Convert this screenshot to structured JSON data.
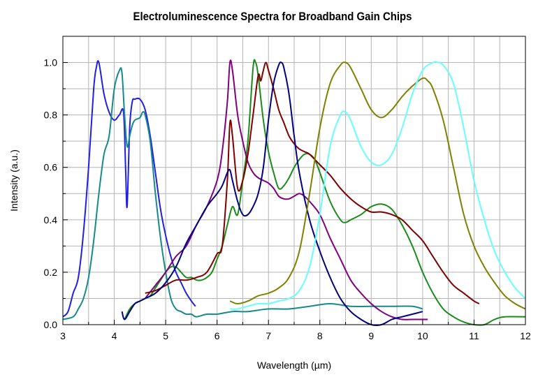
{
  "chart_data": {
    "type": "line",
    "title": "Electroluminescence Spectra for Broadband Gain Chips",
    "xlabel": "Wavelength (µm)",
    "ylabel": "Intensity (a.u.)",
    "xlim": [
      3,
      12
    ],
    "ylim": [
      0,
      1.1
    ],
    "x_ticks": [
      "3",
      "4",
      "5",
      "6",
      "7",
      "8",
      "9",
      "10",
      "11",
      "12"
    ],
    "y_ticks": [
      "0.0",
      "0.2",
      "0.4",
      "0.6",
      "0.8",
      "1.0"
    ],
    "x_tick_values": [
      3,
      4,
      5,
      6,
      7,
      8,
      9,
      10,
      11,
      12
    ],
    "y_tick_values": [
      0,
      0.2,
      0.4,
      0.6,
      0.8,
      1.0
    ],
    "grid": true,
    "series": [
      {
        "color": "#1f1fe6",
        "x": [
          3.0,
          3.1,
          3.2,
          3.3,
          3.4,
          3.5,
          3.6,
          3.65,
          3.7,
          3.8,
          3.9,
          4.0,
          4.1,
          4.18,
          4.22,
          4.25,
          4.3,
          4.35,
          4.4,
          4.5,
          4.6,
          4.7,
          4.8,
          4.9,
          5.0,
          5.1,
          5.2,
          5.3,
          5.4,
          5.5,
          5.58
        ],
        "y": [
          0.03,
          0.05,
          0.12,
          0.18,
          0.35,
          0.6,
          0.9,
          0.98,
          1.0,
          0.88,
          0.81,
          0.78,
          0.8,
          0.81,
          0.6,
          0.45,
          0.75,
          0.85,
          0.86,
          0.86,
          0.82,
          0.72,
          0.58,
          0.44,
          0.34,
          0.26,
          0.2,
          0.16,
          0.12,
          0.09,
          0.07
        ]
      },
      {
        "color": "#148a8a",
        "x": [
          3.0,
          3.2,
          3.3,
          3.4,
          3.5,
          3.6,
          3.7,
          3.8,
          3.9,
          4.0,
          4.1,
          4.15,
          4.2,
          4.25,
          4.3,
          4.35,
          4.4,
          4.5,
          4.55,
          4.6,
          4.7,
          4.8,
          4.9,
          5.0,
          5.1,
          5.2,
          5.3,
          5.4,
          5.5,
          5.6,
          5.8,
          6.0,
          6.3,
          6.6,
          7.0,
          7.4,
          7.8,
          8.2,
          8.6,
          9.0,
          9.4,
          9.8,
          10.0
        ],
        "y": [
          0.02,
          0.03,
          0.06,
          0.1,
          0.18,
          0.32,
          0.5,
          0.65,
          0.72,
          0.9,
          0.97,
          0.96,
          0.8,
          0.68,
          0.72,
          0.76,
          0.78,
          0.79,
          0.81,
          0.8,
          0.7,
          0.5,
          0.33,
          0.2,
          0.1,
          0.06,
          0.05,
          0.04,
          0.04,
          0.03,
          0.04,
          0.04,
          0.05,
          0.05,
          0.06,
          0.06,
          0.07,
          0.08,
          0.07,
          0.07,
          0.07,
          0.07,
          0.06
        ]
      },
      {
        "color": "#1a8c1a",
        "x": [
          4.2,
          4.3,
          4.4,
          4.5,
          4.6,
          4.7,
          4.8,
          4.9,
          5.0,
          5.1,
          5.2,
          5.3,
          5.4,
          5.5,
          5.6,
          5.7,
          5.8,
          5.9,
          6.0,
          6.1,
          6.2,
          6.3,
          6.4,
          6.5,
          6.6,
          6.7,
          6.75,
          6.8,
          6.9,
          7.0,
          7.1,
          7.2,
          7.3,
          7.4,
          7.5,
          7.6,
          7.7,
          7.8,
          7.9,
          8.0,
          8.2,
          8.4,
          8.5,
          8.6,
          8.8,
          9.0,
          9.2,
          9.4,
          9.6,
          9.8,
          10.0,
          10.2,
          10.4,
          10.6,
          10.8,
          11.0,
          11.2,
          11.4,
          11.6,
          12.0
        ],
        "y": [
          0.02,
          0.06,
          0.08,
          0.09,
          0.1,
          0.11,
          0.14,
          0.17,
          0.2,
          0.22,
          0.22,
          0.2,
          0.18,
          0.18,
          0.17,
          0.17,
          0.18,
          0.2,
          0.25,
          0.3,
          0.38,
          0.45,
          0.42,
          0.55,
          0.7,
          0.98,
          1.0,
          0.95,
          0.78,
          0.66,
          0.58,
          0.52,
          0.53,
          0.56,
          0.6,
          0.63,
          0.65,
          0.65,
          0.63,
          0.58,
          0.47,
          0.4,
          0.39,
          0.4,
          0.42,
          0.45,
          0.46,
          0.44,
          0.38,
          0.3,
          0.2,
          0.12,
          0.06,
          0.03,
          0.01,
          0.0,
          0.0,
          0.02,
          0.03,
          0.03
        ]
      },
      {
        "color": "#800080",
        "x": [
          4.6,
          4.8,
          5.0,
          5.2,
          5.4,
          5.6,
          5.8,
          6.0,
          6.1,
          6.2,
          6.25,
          6.3,
          6.4,
          6.5,
          6.6,
          6.7,
          6.8,
          6.9,
          7.0,
          7.1,
          7.2,
          7.3,
          7.4,
          7.5,
          7.6,
          7.7,
          7.8,
          8.0,
          8.2,
          8.4,
          8.6,
          8.8,
          9.0,
          9.2,
          9.4,
          9.6,
          9.8,
          10.0,
          10.1
        ],
        "y": [
          0.1,
          0.15,
          0.2,
          0.26,
          0.3,
          0.38,
          0.45,
          0.55,
          0.66,
          0.85,
          1.0,
          0.97,
          0.8,
          0.7,
          0.62,
          0.58,
          0.56,
          0.55,
          0.54,
          0.52,
          0.49,
          0.48,
          0.48,
          0.49,
          0.5,
          0.49,
          0.47,
          0.42,
          0.33,
          0.25,
          0.17,
          0.12,
          0.08,
          0.05,
          0.03,
          0.02,
          0.02,
          0.02,
          0.02
        ]
      },
      {
        "color": "#800000",
        "x": [
          4.6,
          4.8,
          5.0,
          5.2,
          5.4,
          5.6,
          5.8,
          6.0,
          6.1,
          6.2,
          6.25,
          6.3,
          6.4,
          6.5,
          6.6,
          6.7,
          6.8,
          6.85,
          6.9,
          6.95,
          7.0,
          7.1,
          7.2,
          7.3,
          7.4,
          7.5,
          7.6,
          7.7,
          7.8,
          8.0,
          8.2,
          8.4,
          8.6,
          8.8,
          9.0,
          9.2,
          9.4,
          9.6,
          9.8,
          10.0,
          10.2,
          10.4,
          10.6,
          10.8,
          11.0,
          11.1
        ],
        "y": [
          0.12,
          0.13,
          0.15,
          0.17,
          0.17,
          0.18,
          0.2,
          0.27,
          0.3,
          0.55,
          0.77,
          0.72,
          0.52,
          0.55,
          0.65,
          0.8,
          0.95,
          0.93,
          0.97,
          1.0,
          0.97,
          0.9,
          0.82,
          0.77,
          0.72,
          0.69,
          0.67,
          0.66,
          0.65,
          0.61,
          0.57,
          0.52,
          0.48,
          0.45,
          0.43,
          0.43,
          0.42,
          0.4,
          0.36,
          0.32,
          0.26,
          0.2,
          0.15,
          0.12,
          0.09,
          0.08
        ]
      },
      {
        "color": "#000080",
        "x": [
          4.15,
          4.2,
          4.3,
          4.4,
          4.5,
          4.6,
          4.8,
          5.0,
          5.2,
          5.4,
          5.6,
          5.8,
          6.0,
          6.1,
          6.2,
          6.25,
          6.3,
          6.4,
          6.5,
          6.6,
          6.7,
          6.8,
          6.9,
          7.0,
          7.1,
          7.2,
          7.25,
          7.3,
          7.4,
          7.5,
          7.6,
          7.8,
          8.0,
          8.2,
          8.4,
          8.6,
          8.8,
          9.0,
          9.2,
          9.4,
          9.6,
          9.8,
          10.0
        ],
        "y": [
          0.05,
          0.02,
          0.05,
          0.08,
          0.09,
          0.1,
          0.12,
          0.16,
          0.22,
          0.31,
          0.38,
          0.45,
          0.5,
          0.53,
          0.58,
          0.59,
          0.55,
          0.47,
          0.42,
          0.42,
          0.45,
          0.5,
          0.6,
          0.78,
          0.92,
          0.99,
          1.0,
          0.98,
          0.88,
          0.72,
          0.58,
          0.4,
          0.28,
          0.18,
          0.1,
          0.05,
          0.02,
          0.0,
          0.0,
          0.02,
          0.03,
          0.04,
          0.05
        ]
      },
      {
        "color": "#808000",
        "x": [
          6.25,
          6.4,
          6.6,
          6.8,
          7.0,
          7.2,
          7.4,
          7.6,
          7.8,
          8.0,
          8.2,
          8.4,
          8.5,
          8.6,
          8.8,
          9.0,
          9.2,
          9.4,
          9.6,
          9.8,
          10.0,
          10.1,
          10.2,
          10.4,
          10.6,
          10.8,
          11.0,
          11.2,
          11.4,
          11.6,
          11.8,
          12.0
        ],
        "y": [
          0.09,
          0.08,
          0.09,
          0.11,
          0.12,
          0.14,
          0.18,
          0.28,
          0.5,
          0.75,
          0.92,
          0.99,
          1.0,
          0.98,
          0.9,
          0.82,
          0.79,
          0.82,
          0.87,
          0.91,
          0.94,
          0.93,
          0.9,
          0.78,
          0.6,
          0.42,
          0.3,
          0.22,
          0.16,
          0.11,
          0.08,
          0.06
        ]
      },
      {
        "color": "#66ffff",
        "x": [
          6.25,
          6.4,
          6.6,
          6.8,
          7.0,
          7.2,
          7.4,
          7.6,
          7.8,
          8.0,
          8.2,
          8.4,
          8.5,
          8.6,
          8.8,
          9.0,
          9.2,
          9.4,
          9.6,
          9.8,
          10.0,
          10.2,
          10.3,
          10.4,
          10.6,
          10.8,
          11.0,
          11.2,
          11.4,
          11.6,
          11.8,
          12.0
        ],
        "y": [
          0.06,
          0.06,
          0.07,
          0.08,
          0.08,
          0.09,
          0.1,
          0.13,
          0.22,
          0.42,
          0.68,
          0.8,
          0.81,
          0.78,
          0.68,
          0.62,
          0.61,
          0.65,
          0.75,
          0.88,
          0.97,
          1.0,
          1.0,
          0.99,
          0.92,
          0.75,
          0.55,
          0.4,
          0.28,
          0.2,
          0.14,
          0.1
        ]
      }
    ]
  }
}
